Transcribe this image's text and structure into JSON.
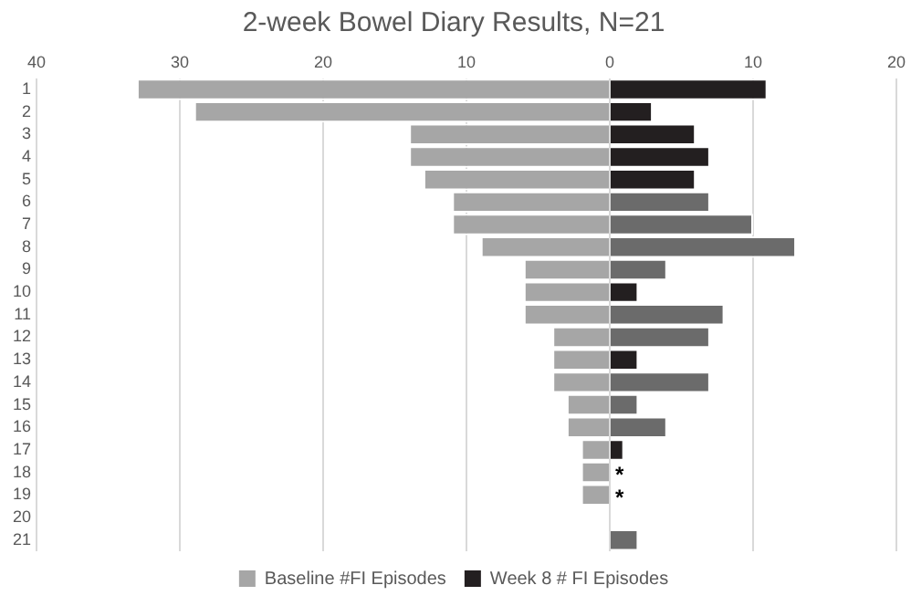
{
  "chart_data": {
    "type": "bar",
    "orientation": "horizontal",
    "stacked": true,
    "title": "2-week Bowel Diary Results, N=21",
    "categories": [
      "1",
      "2",
      "3",
      "4",
      "5",
      "6",
      "7",
      "8",
      "9",
      "10",
      "11",
      "12",
      "13",
      "14",
      "15",
      "16",
      "17",
      "18",
      "19",
      "20",
      "21"
    ],
    "series": [
      {
        "name": "Baseline #FI Episodes",
        "color": "#a6a6a6",
        "values": [
          -33,
          -29,
          -14,
          -14,
          -13,
          -11,
          -11,
          -9,
          -6,
          -6,
          -6,
          -4,
          -4,
          -4,
          -3,
          -3,
          -2,
          -2,
          -2,
          0,
          0
        ]
      },
      {
        "name": "Week 8 # FI Episodes",
        "color": "#231f20",
        "colors": [
          "#231f20",
          "#231f20",
          "#231f20",
          "#231f20",
          "#231f20",
          "#6b6b6b",
          "#6b6b6b",
          "#6b6b6b",
          "#6b6b6b",
          "#231f20",
          "#6b6b6b",
          "#6b6b6b",
          "#231f20",
          "#6b6b6b",
          "#6b6b6b",
          "#6b6b6b",
          "#231f20",
          "#231f20",
          "#231f20",
          "#231f20",
          "#6b6b6b"
        ],
        "values": [
          11,
          3,
          6,
          7,
          6,
          7,
          10,
          13,
          4,
          2,
          8,
          7,
          2,
          7,
          2,
          4,
          1,
          0,
          0,
          0,
          2
        ]
      }
    ],
    "xlim": [
      -40,
      20
    ],
    "xticks": [
      {
        "value": -40,
        "label": "40"
      },
      {
        "value": -30,
        "label": "30"
      },
      {
        "value": -20,
        "label": "20"
      },
      {
        "value": -10,
        "label": "10"
      },
      0,
      10,
      20
    ],
    "annotations": [
      {
        "text": "*",
        "x": 0,
        "y": "18"
      },
      {
        "text": "*",
        "x": 0,
        "y": "19"
      }
    ],
    "grid": "x",
    "legend": "bottom"
  }
}
